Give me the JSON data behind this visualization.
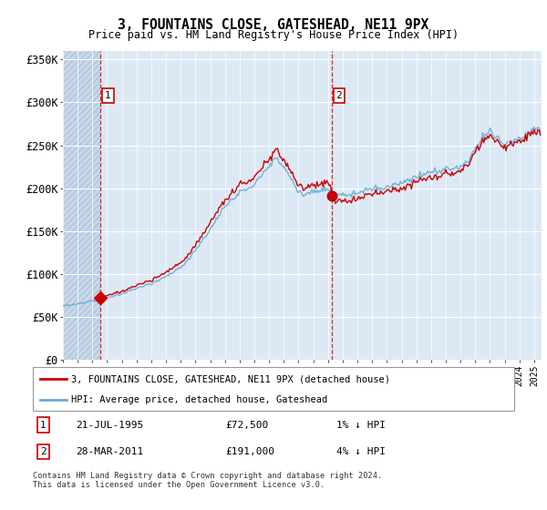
{
  "title": "3, FOUNTAINS CLOSE, GATESHEAD, NE11 9PX",
  "subtitle": "Price paid vs. HM Land Registry's House Price Index (HPI)",
  "ylim": [
    0,
    360000
  ],
  "yticks": [
    0,
    50000,
    100000,
    150000,
    200000,
    250000,
    300000,
    350000
  ],
  "ytick_labels": [
    "£0",
    "£50K",
    "£100K",
    "£150K",
    "£200K",
    "£250K",
    "£300K",
    "£350K"
  ],
  "bg_color": "#dce9f5",
  "hatch_stripe_color": "#c8d8ea",
  "grid_color": "#b8cfe0",
  "line_color_hpi": "#6aaad4",
  "line_color_property": "#cc0000",
  "sale1_price": 72500,
  "sale1_x": 1995.55,
  "sale2_price": 191000,
  "sale2_x": 2011.24,
  "xmin": 1993.0,
  "xmax": 2025.5,
  "legend_property": "3, FOUNTAINS CLOSE, GATESHEAD, NE11 9PX (detached house)",
  "legend_hpi": "HPI: Average price, detached house, Gateshead",
  "note1_label": "1",
  "note1_date": "21-JUL-1995",
  "note1_price": "£72,500",
  "note1_hpi": "1% ↓ HPI",
  "note2_label": "2",
  "note2_date": "28-MAR-2011",
  "note2_price": "£191,000",
  "note2_hpi": "4% ↓ HPI",
  "footer": "Contains HM Land Registry data © Crown copyright and database right 2024.\nThis data is licensed under the Open Government Licence v3.0."
}
